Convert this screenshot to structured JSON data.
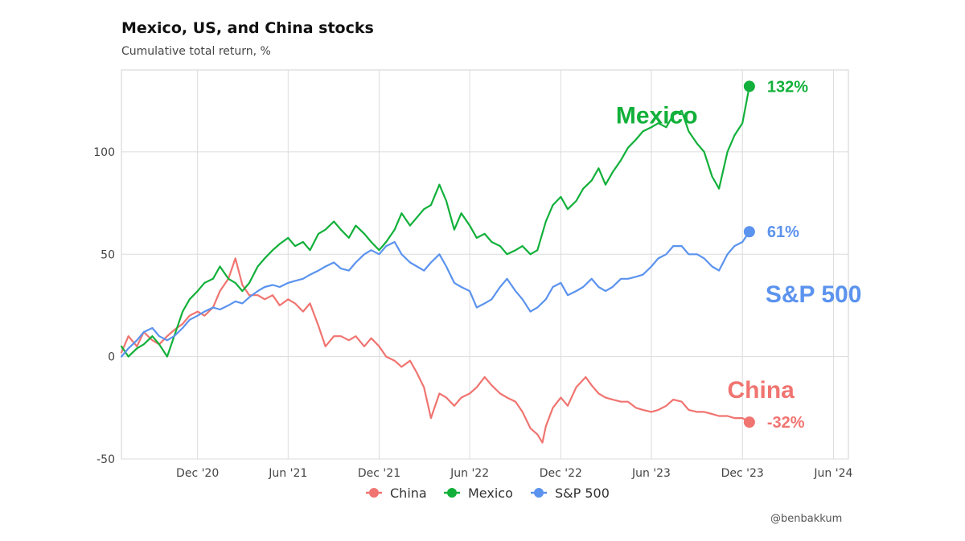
{
  "header": {
    "title": "Mexico, US, and China stocks",
    "subtitle": "Cumulative total return, %"
  },
  "credit": "@benbakkum",
  "chart_data": {
    "type": "line",
    "title": "Mexico, US, and China stocks",
    "subtitle": "Cumulative total return, %",
    "ylabel": "Cumulative total return, %",
    "xlabel": "",
    "ylim": [
      -50,
      140
    ],
    "xlim": [
      "2020-07-01",
      "2024-07-01"
    ],
    "y_ticks": [
      {
        "value": -50,
        "label": "-50"
      },
      {
        "value": 0,
        "label": "0"
      },
      {
        "value": 50,
        "label": "50"
      },
      {
        "value": 100,
        "label": "100"
      }
    ],
    "x_ticks": [
      {
        "date": "2020-12-01",
        "label": "Dec '20"
      },
      {
        "date": "2021-06-01",
        "label": "Jun '21"
      },
      {
        "date": "2021-12-01",
        "label": "Dec '21"
      },
      {
        "date": "2022-06-01",
        "label": "Jun '22"
      },
      {
        "date": "2022-12-01",
        "label": "Dec '22"
      },
      {
        "date": "2023-06-01",
        "label": "Jun '23"
      },
      {
        "date": "2023-12-01",
        "label": "Dec '23"
      },
      {
        "date": "2024-06-01",
        "label": "Jun '24"
      }
    ],
    "grid": true,
    "legend_position": "bottom",
    "series": [
      {
        "name": "China",
        "color": "#F07470",
        "annotation": "China",
        "end_label": "-32%",
        "points": [
          [
            "2020-07-01",
            2
          ],
          [
            "2020-07-15",
            10
          ],
          [
            "2020-08-01",
            5
          ],
          [
            "2020-08-15",
            12
          ],
          [
            "2020-09-01",
            8
          ],
          [
            "2020-09-15",
            6
          ],
          [
            "2020-10-01",
            10
          ],
          [
            "2020-10-15",
            13
          ],
          [
            "2020-11-01",
            16
          ],
          [
            "2020-11-15",
            20
          ],
          [
            "2020-12-01",
            22
          ],
          [
            "2020-12-15",
            20
          ],
          [
            "2021-01-01",
            24
          ],
          [
            "2021-01-15",
            32
          ],
          [
            "2021-02-01",
            38
          ],
          [
            "2021-02-15",
            48
          ],
          [
            "2021-03-01",
            35
          ],
          [
            "2021-03-15",
            30
          ],
          [
            "2021-04-01",
            30
          ],
          [
            "2021-04-15",
            28
          ],
          [
            "2021-05-01",
            30
          ],
          [
            "2021-05-15",
            25
          ],
          [
            "2021-06-01",
            28
          ],
          [
            "2021-06-15",
            26
          ],
          [
            "2021-07-01",
            22
          ],
          [
            "2021-07-15",
            26
          ],
          [
            "2021-08-01",
            15
          ],
          [
            "2021-08-15",
            5
          ],
          [
            "2021-09-01",
            10
          ],
          [
            "2021-09-15",
            10
          ],
          [
            "2021-10-01",
            8
          ],
          [
            "2021-10-15",
            10
          ],
          [
            "2021-11-01",
            5
          ],
          [
            "2021-11-15",
            9
          ],
          [
            "2021-12-01",
            5
          ],
          [
            "2021-12-15",
            0
          ],
          [
            "2022-01-01",
            -2
          ],
          [
            "2022-01-15",
            -5
          ],
          [
            "2022-02-01",
            -2
          ],
          [
            "2022-02-15",
            -8
          ],
          [
            "2022-03-01",
            -15
          ],
          [
            "2022-03-15",
            -30
          ],
          [
            "2022-04-01",
            -18
          ],
          [
            "2022-04-15",
            -20
          ],
          [
            "2022-05-01",
            -24
          ],
          [
            "2022-05-15",
            -20
          ],
          [
            "2022-06-01",
            -18
          ],
          [
            "2022-06-15",
            -15
          ],
          [
            "2022-07-01",
            -10
          ],
          [
            "2022-07-15",
            -14
          ],
          [
            "2022-08-01",
            -18
          ],
          [
            "2022-08-15",
            -20
          ],
          [
            "2022-09-01",
            -22
          ],
          [
            "2022-09-15",
            -27
          ],
          [
            "2022-10-01",
            -35
          ],
          [
            "2022-10-15",
            -38
          ],
          [
            "2022-10-25",
            -42
          ],
          [
            "2022-11-01",
            -34
          ],
          [
            "2022-11-15",
            -25
          ],
          [
            "2022-12-01",
            -20
          ],
          [
            "2022-12-15",
            -24
          ],
          [
            "2023-01-01",
            -15
          ],
          [
            "2023-01-20",
            -10
          ],
          [
            "2023-02-01",
            -14
          ],
          [
            "2023-02-15",
            -18
          ],
          [
            "2023-03-01",
            -20
          ],
          [
            "2023-03-15",
            -21
          ],
          [
            "2023-04-01",
            -22
          ],
          [
            "2023-04-15",
            -22
          ],
          [
            "2023-05-01",
            -25
          ],
          [
            "2023-05-15",
            -26
          ],
          [
            "2023-06-01",
            -27
          ],
          [
            "2023-06-15",
            -26
          ],
          [
            "2023-07-01",
            -24
          ],
          [
            "2023-07-15",
            -21
          ],
          [
            "2023-08-01",
            -22
          ],
          [
            "2023-08-15",
            -26
          ],
          [
            "2023-09-01",
            -27
          ],
          [
            "2023-09-15",
            -27
          ],
          [
            "2023-10-01",
            -28
          ],
          [
            "2023-10-15",
            -29
          ],
          [
            "2023-11-01",
            -29
          ],
          [
            "2023-11-15",
            -30
          ],
          [
            "2023-12-01",
            -30
          ],
          [
            "2023-12-15",
            -32
          ]
        ]
      },
      {
        "name": "Mexico",
        "color": "#12B03A",
        "annotation": "Mexico",
        "end_label": "132%",
        "points": [
          [
            "2020-07-01",
            5
          ],
          [
            "2020-07-15",
            0
          ],
          [
            "2020-08-01",
            4
          ],
          [
            "2020-08-15",
            6
          ],
          [
            "2020-09-01",
            10
          ],
          [
            "2020-09-15",
            6
          ],
          [
            "2020-10-01",
            0
          ],
          [
            "2020-10-15",
            10
          ],
          [
            "2020-11-01",
            22
          ],
          [
            "2020-11-15",
            28
          ],
          [
            "2020-12-01",
            32
          ],
          [
            "2020-12-15",
            36
          ],
          [
            "2021-01-01",
            38
          ],
          [
            "2021-01-15",
            44
          ],
          [
            "2021-02-01",
            38
          ],
          [
            "2021-02-15",
            36
          ],
          [
            "2021-03-01",
            32
          ],
          [
            "2021-03-15",
            36
          ],
          [
            "2021-04-01",
            44
          ],
          [
            "2021-04-15",
            48
          ],
          [
            "2021-05-01",
            52
          ],
          [
            "2021-05-15",
            55
          ],
          [
            "2021-06-01",
            58
          ],
          [
            "2021-06-15",
            54
          ],
          [
            "2021-07-01",
            56
          ],
          [
            "2021-07-15",
            52
          ],
          [
            "2021-08-01",
            60
          ],
          [
            "2021-08-15",
            62
          ],
          [
            "2021-09-01",
            66
          ],
          [
            "2021-09-15",
            62
          ],
          [
            "2021-10-01",
            58
          ],
          [
            "2021-10-15",
            64
          ],
          [
            "2021-11-01",
            60
          ],
          [
            "2021-11-15",
            56
          ],
          [
            "2021-12-01",
            52
          ],
          [
            "2021-12-15",
            56
          ],
          [
            "2022-01-01",
            62
          ],
          [
            "2022-01-15",
            70
          ],
          [
            "2022-02-01",
            64
          ],
          [
            "2022-02-15",
            68
          ],
          [
            "2022-03-01",
            72
          ],
          [
            "2022-03-15",
            74
          ],
          [
            "2022-04-01",
            84
          ],
          [
            "2022-04-15",
            76
          ],
          [
            "2022-05-01",
            62
          ],
          [
            "2022-05-15",
            70
          ],
          [
            "2022-06-01",
            64
          ],
          [
            "2022-06-15",
            58
          ],
          [
            "2022-07-01",
            60
          ],
          [
            "2022-07-15",
            56
          ],
          [
            "2022-08-01",
            54
          ],
          [
            "2022-08-15",
            50
          ],
          [
            "2022-09-01",
            52
          ],
          [
            "2022-09-15",
            54
          ],
          [
            "2022-10-01",
            50
          ],
          [
            "2022-10-15",
            52
          ],
          [
            "2022-11-01",
            66
          ],
          [
            "2022-11-15",
            74
          ],
          [
            "2022-12-01",
            78
          ],
          [
            "2022-12-15",
            72
          ],
          [
            "2023-01-01",
            76
          ],
          [
            "2023-01-15",
            82
          ],
          [
            "2023-02-01",
            86
          ],
          [
            "2023-02-15",
            92
          ],
          [
            "2023-03-01",
            84
          ],
          [
            "2023-03-15",
            90
          ],
          [
            "2023-04-01",
            96
          ],
          [
            "2023-04-15",
            102
          ],
          [
            "2023-05-01",
            106
          ],
          [
            "2023-05-15",
            110
          ],
          [
            "2023-06-01",
            112
          ],
          [
            "2023-06-15",
            114
          ],
          [
            "2023-07-01",
            112
          ],
          [
            "2023-07-15",
            118
          ],
          [
            "2023-08-01",
            120
          ],
          [
            "2023-08-15",
            110
          ],
          [
            "2023-09-01",
            104
          ],
          [
            "2023-09-15",
            100
          ],
          [
            "2023-10-01",
            88
          ],
          [
            "2023-10-15",
            82
          ],
          [
            "2023-11-01",
            100
          ],
          [
            "2023-11-15",
            108
          ],
          [
            "2023-12-01",
            114
          ],
          [
            "2023-12-15",
            132
          ]
        ]
      },
      {
        "name": "S&P 500",
        "color": "#5B93EE",
        "annotation": "S&P 500",
        "end_label": "61%",
        "points": [
          [
            "2020-07-01",
            0
          ],
          [
            "2020-07-15",
            4
          ],
          [
            "2020-08-01",
            8
          ],
          [
            "2020-08-15",
            12
          ],
          [
            "2020-09-01",
            14
          ],
          [
            "2020-09-15",
            10
          ],
          [
            "2020-10-01",
            8
          ],
          [
            "2020-10-15",
            10
          ],
          [
            "2020-11-01",
            14
          ],
          [
            "2020-11-15",
            18
          ],
          [
            "2020-12-01",
            20
          ],
          [
            "2020-12-15",
            22
          ],
          [
            "2021-01-01",
            24
          ],
          [
            "2021-01-15",
            23
          ],
          [
            "2021-02-01",
            25
          ],
          [
            "2021-02-15",
            27
          ],
          [
            "2021-03-01",
            26
          ],
          [
            "2021-03-15",
            29
          ],
          [
            "2021-04-01",
            32
          ],
          [
            "2021-04-15",
            34
          ],
          [
            "2021-05-01",
            35
          ],
          [
            "2021-05-15",
            34
          ],
          [
            "2021-06-01",
            36
          ],
          [
            "2021-06-15",
            37
          ],
          [
            "2021-07-01",
            38
          ],
          [
            "2021-07-15",
            40
          ],
          [
            "2021-08-01",
            42
          ],
          [
            "2021-08-15",
            44
          ],
          [
            "2021-09-01",
            46
          ],
          [
            "2021-09-15",
            43
          ],
          [
            "2021-10-01",
            42
          ],
          [
            "2021-10-15",
            46
          ],
          [
            "2021-11-01",
            50
          ],
          [
            "2021-11-15",
            52
          ],
          [
            "2021-12-01",
            50
          ],
          [
            "2021-12-15",
            54
          ],
          [
            "2022-01-01",
            56
          ],
          [
            "2022-01-15",
            50
          ],
          [
            "2022-02-01",
            46
          ],
          [
            "2022-02-15",
            44
          ],
          [
            "2022-03-01",
            42
          ],
          [
            "2022-03-15",
            46
          ],
          [
            "2022-04-01",
            50
          ],
          [
            "2022-04-15",
            44
          ],
          [
            "2022-05-01",
            36
          ],
          [
            "2022-05-15",
            34
          ],
          [
            "2022-06-01",
            32
          ],
          [
            "2022-06-15",
            24
          ],
          [
            "2022-07-01",
            26
          ],
          [
            "2022-07-15",
            28
          ],
          [
            "2022-08-01",
            34
          ],
          [
            "2022-08-15",
            38
          ],
          [
            "2022-09-01",
            32
          ],
          [
            "2022-09-15",
            28
          ],
          [
            "2022-10-01",
            22
          ],
          [
            "2022-10-15",
            24
          ],
          [
            "2022-11-01",
            28
          ],
          [
            "2022-11-15",
            34
          ],
          [
            "2022-12-01",
            36
          ],
          [
            "2022-12-15",
            30
          ],
          [
            "2023-01-01",
            32
          ],
          [
            "2023-01-15",
            34
          ],
          [
            "2023-02-01",
            38
          ],
          [
            "2023-02-15",
            34
          ],
          [
            "2023-03-01",
            32
          ],
          [
            "2023-03-15",
            34
          ],
          [
            "2023-04-01",
            38
          ],
          [
            "2023-04-15",
            38
          ],
          [
            "2023-05-01",
            39
          ],
          [
            "2023-05-15",
            40
          ],
          [
            "2023-06-01",
            44
          ],
          [
            "2023-06-15",
            48
          ],
          [
            "2023-07-01",
            50
          ],
          [
            "2023-07-15",
            54
          ],
          [
            "2023-08-01",
            54
          ],
          [
            "2023-08-15",
            50
          ],
          [
            "2023-09-01",
            50
          ],
          [
            "2023-09-15",
            48
          ],
          [
            "2023-10-01",
            44
          ],
          [
            "2023-10-15",
            42
          ],
          [
            "2023-11-01",
            50
          ],
          [
            "2023-11-15",
            54
          ],
          [
            "2023-12-01",
            56
          ],
          [
            "2023-12-15",
            61
          ]
        ]
      }
    ]
  }
}
